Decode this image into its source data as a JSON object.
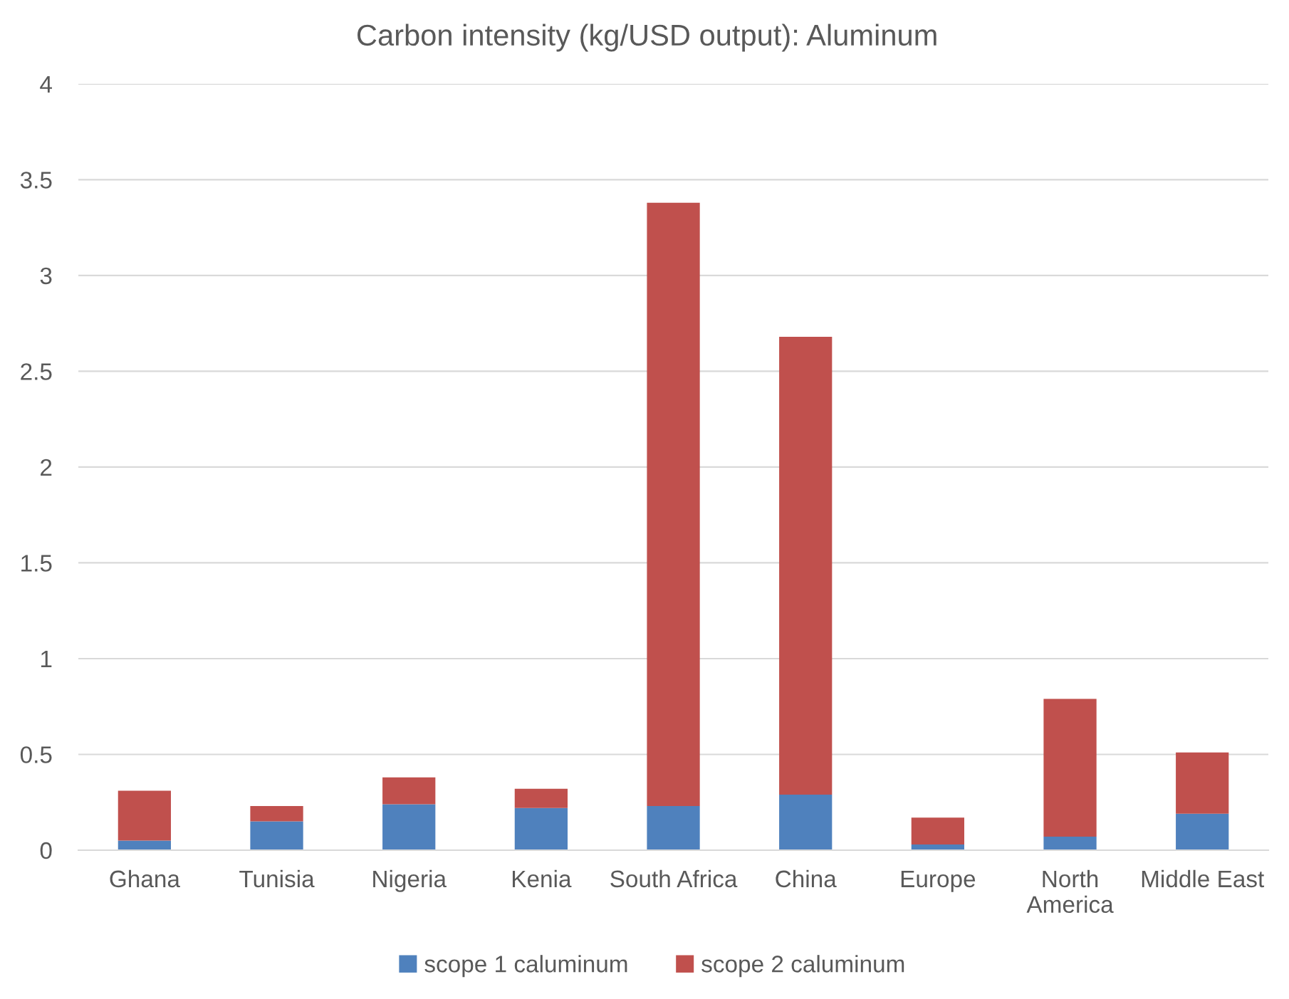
{
  "chart_data": {
    "type": "bar",
    "title": "Carbon intensity (kg/USD output): Aluminum",
    "categories": [
      "Ghana",
      "Tunisia",
      "Nigeria",
      "Kenia",
      "South Africa",
      "China",
      "Europe",
      "North America",
      "Middle East"
    ],
    "stacked": true,
    "series": [
      {
        "name": "scope 1 caluminum",
        "color": "#4f81bd",
        "values": [
          0.05,
          0.15,
          0.24,
          0.22,
          0.23,
          0.29,
          0.03,
          0.07,
          0.19
        ]
      },
      {
        "name": "scope 2 caluminum",
        "color": "#c0504d",
        "values": [
          0.26,
          0.08,
          0.14,
          0.1,
          3.15,
          2.39,
          0.14,
          0.72,
          0.32
        ]
      }
    ],
    "ylim": [
      0,
      4
    ],
    "yticks": [
      0,
      0.5,
      1,
      1.5,
      2,
      2.5,
      3,
      3.5,
      4
    ],
    "grid": "y",
    "legend": "bottom"
  }
}
